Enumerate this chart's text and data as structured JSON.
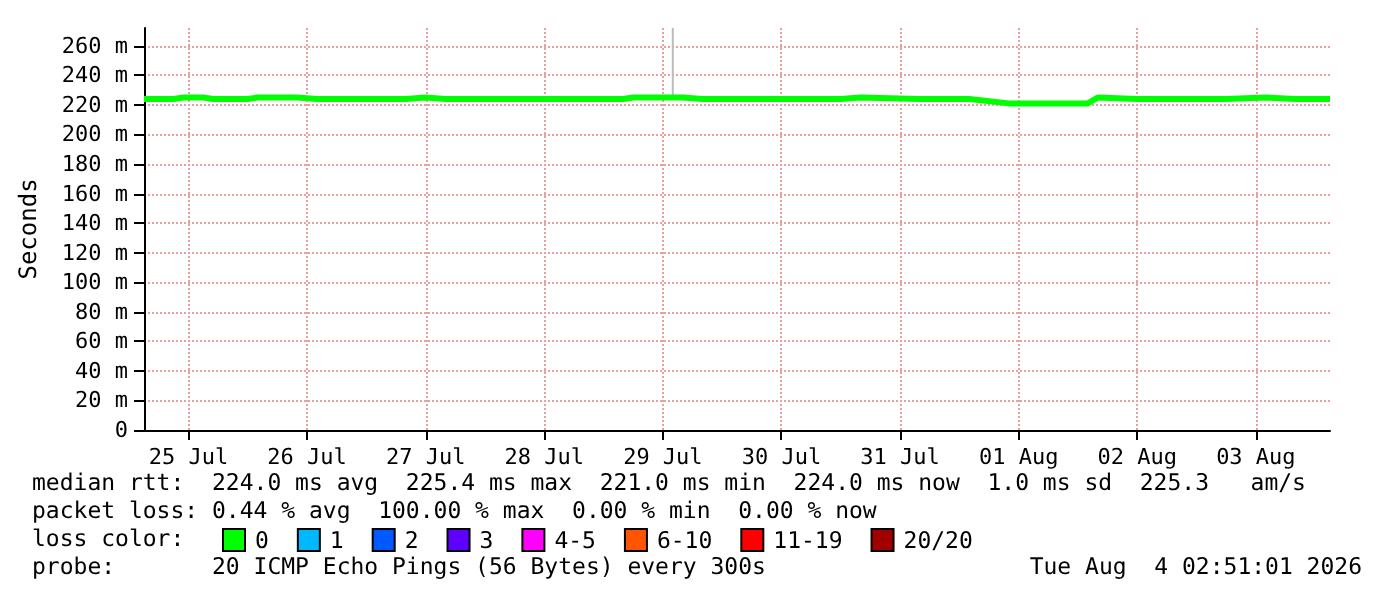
{
  "chart_data": {
    "type": "line",
    "ylabel": "Seconds",
    "x": [
      "2026-07-25T03:00",
      "2026-07-25T09:00",
      "2026-07-25T11:00",
      "2026-07-25T15:00",
      "2026-07-25T17:00",
      "2026-07-26T00:00",
      "2026-07-26T02:00",
      "2026-07-26T10:00",
      "2026-07-26T14:00",
      "2026-07-26T20:00",
      "2026-07-27T04:00",
      "2026-07-27T08:00",
      "2026-07-27T12:00",
      "2026-07-27T16:00",
      "2026-07-28T08:00",
      "2026-07-28T12:00",
      "2026-07-29T04:00",
      "2026-07-29T06:00",
      "2026-07-29T16:00",
      "2026-07-29T20:00",
      "2026-07-30T12:00",
      "2026-07-31T00:00",
      "2026-07-31T04:00",
      "2026-07-31T16:00",
      "2026-08-01T00:00",
      "2026-08-01T02:00",
      "2026-08-01T10:00",
      "2026-08-01T20:00",
      "2026-08-02T02:00",
      "2026-08-02T04:00",
      "2026-08-02T12:00",
      "2026-08-03T00:00",
      "2026-08-03T06:00",
      "2026-08-03T14:00",
      "2026-08-03T20:00",
      "2026-08-04T03:00"
    ],
    "series": [
      {
        "name": "0",
        "color": "#00ff00",
        "values": [
          224,
          224,
          225,
          225,
          224,
          224,
          225,
          225,
          224,
          224,
          224,
          224,
          225,
          224,
          224,
          224,
          224,
          225,
          225,
          224,
          224,
          224,
          225,
          224,
          224,
          224,
          221,
          221,
          221,
          225,
          224,
          224,
          224,
          225,
          224,
          224
        ]
      },
      {
        "name": "1",
        "color": "#00b8ff",
        "values": [
          null,
          null,
          null,
          null,
          null,
          null,
          null,
          null,
          null,
          null,
          null,
          null,
          null,
          null,
          null,
          null,
          null,
          null,
          null,
          null,
          null,
          null,
          null,
          null,
          null,
          null,
          null,
          null,
          null,
          null,
          null,
          null,
          null,
          null,
          null,
          null
        ]
      },
      {
        "name": "2",
        "color": "#0059ff",
        "values": [
          null,
          null,
          null,
          null,
          null,
          null,
          null,
          null,
          null,
          null,
          null,
          null,
          null,
          null,
          null,
          null,
          null,
          null,
          null,
          null,
          null,
          null,
          null,
          null,
          null,
          null,
          null,
          null,
          null,
          null,
          null,
          null,
          null,
          null,
          null,
          null
        ]
      },
      {
        "name": "3",
        "color": "#5e00ff",
        "values": [
          null,
          null,
          null,
          null,
          null,
          null,
          null,
          null,
          null,
          null,
          null,
          null,
          null,
          null,
          null,
          null,
          null,
          null,
          null,
          null,
          null,
          null,
          null,
          null,
          null,
          null,
          null,
          null,
          null,
          null,
          null,
          null,
          null,
          null,
          null,
          null
        ]
      },
      {
        "name": "4-5",
        "color": "#ff00ff",
        "values": [
          null,
          null,
          null,
          null,
          null,
          null,
          null,
          null,
          null,
          null,
          null,
          null,
          null,
          null,
          null,
          null,
          null,
          null,
          null,
          null,
          null,
          null,
          null,
          null,
          null,
          null,
          null,
          null,
          null,
          null,
          null,
          null,
          null,
          null,
          null,
          null
        ]
      },
      {
        "name": "6-10",
        "color": "#ff5500",
        "values": [
          null,
          null,
          null,
          null,
          null,
          null,
          null,
          null,
          null,
          null,
          null,
          null,
          null,
          null,
          null,
          null,
          null,
          null,
          null,
          null,
          null,
          null,
          null,
          null,
          null,
          null,
          null,
          null,
          null,
          null,
          null,
          null,
          null,
          null,
          null,
          null
        ]
      },
      {
        "name": "11-19",
        "color": "#ff0000",
        "values": [
          null,
          null,
          null,
          null,
          null,
          null,
          null,
          null,
          null,
          null,
          null,
          null,
          null,
          null,
          null,
          null,
          null,
          null,
          null,
          null,
          null,
          null,
          null,
          null,
          null,
          null,
          null,
          null,
          null,
          null,
          null,
          null,
          null,
          null,
          null,
          null
        ]
      },
      {
        "name": "20/20",
        "color": "#a10000",
        "values": [
          null,
          null,
          null,
          null,
          null,
          null,
          null,
          null,
          null,
          null,
          null,
          null,
          null,
          null,
          null,
          null,
          null,
          null,
          null,
          null,
          null,
          null,
          null,
          null,
          null,
          null,
          null,
          null,
          null,
          null,
          null,
          null,
          null,
          null,
          null,
          null
        ]
      },
      {
        "color": "#bbbbbb",
        "x": [
          "2026-07-29T14:00",
          "2026-07-29T14:00"
        ],
        "values": [
          225,
          272
        ]
      }
    ],
    "xlim": [
      "2026-07-25T03:00",
      "2026-08-04T03:00"
    ],
    "xticks": [
      {
        "value": "2026-07-25T12:00",
        "label": "25 Jul"
      },
      {
        "value": "2026-07-26T12:00",
        "label": "26 Jul"
      },
      {
        "value": "2026-07-27T12:00",
        "label": "27 Jul"
      },
      {
        "value": "2026-07-28T12:00",
        "label": "28 Jul"
      },
      {
        "value": "2026-07-29T12:00",
        "label": "29 Jul"
      },
      {
        "value": "2026-07-30T12:00",
        "label": "30 Jul"
      },
      {
        "value": "2026-07-31T12:00",
        "label": "31 Jul"
      },
      {
        "value": "2026-08-01T12:00",
        "label": "01 Aug"
      },
      {
        "value": "2026-08-02T12:00",
        "label": "02 Aug"
      },
      {
        "value": "2026-08-03T12:00",
        "label": "03 Aug"
      }
    ],
    "ylim": [
      0,
      272
    ],
    "yticks": [
      0,
      {
        "value": 20,
        "label": "20 m"
      },
      {
        "value": 40,
        "label": "40 m"
      },
      {
        "value": 60,
        "label": "60 m"
      },
      {
        "value": 80,
        "label": "80 m"
      },
      {
        "value": 100,
        "label": "100 m"
      },
      {
        "value": 120,
        "label": "120 m"
      },
      {
        "value": 140,
        "label": "140 m"
      },
      {
        "value": 160,
        "label": "160 m"
      },
      {
        "value": 180,
        "label": "180 m"
      },
      {
        "value": 200,
        "label": "200 m"
      },
      {
        "value": 220,
        "label": "220 m"
      },
      {
        "value": 240,
        "label": "240 m"
      },
      {
        "value": 260,
        "label": "260 m"
      }
    ],
    "grid": true,
    "legend": "bottom left",
    "legend_title": "loss color:",
    "marker": "none",
    "annotations": [
      "median rtt:  224.0 ms avg  225.4 ms max  221.0 ms min  224.0 ms now  1.0 ms sd  225.3   am/s",
      "packet loss: 0.44 % avg  100.00 % max  0.00 % min  0.00 % now",
      "probe:       20 ICMP Echo Pings (56 Bytes) every 300s",
      "Tue Aug  4 02:51:01 2026"
    ]
  }
}
